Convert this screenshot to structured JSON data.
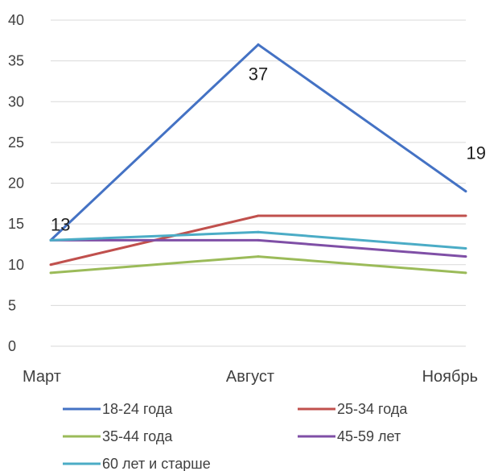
{
  "chart_data": {
    "type": "line",
    "title": "",
    "xlabel": "",
    "ylabel": "",
    "categories": [
      "Март",
      "Август",
      "Ноябрь"
    ],
    "ylim": [
      0,
      40
    ],
    "yticks": [
      0,
      5,
      10,
      15,
      20,
      25,
      30,
      35,
      40
    ],
    "grid": true,
    "legend_position": "bottom",
    "series": [
      {
        "name": "18-24 года",
        "values": [
          13,
          37,
          19
        ],
        "color": "#4472C4",
        "data_labels": [
          "13",
          "37",
          "19"
        ]
      },
      {
        "name": "25-34 года",
        "values": [
          10,
          16,
          16
        ],
        "color": "#C0504D"
      },
      {
        "name": "35-44 года",
        "values": [
          9,
          11,
          9
        ],
        "color": "#9BBB59"
      },
      {
        "name": "45-59 лет",
        "values": [
          13,
          13,
          11
        ],
        "color": "#7F4FA6"
      },
      {
        "name": "60 лет и старше",
        "values": [
          13,
          14,
          12
        ],
        "color": "#4BACC6"
      }
    ]
  }
}
